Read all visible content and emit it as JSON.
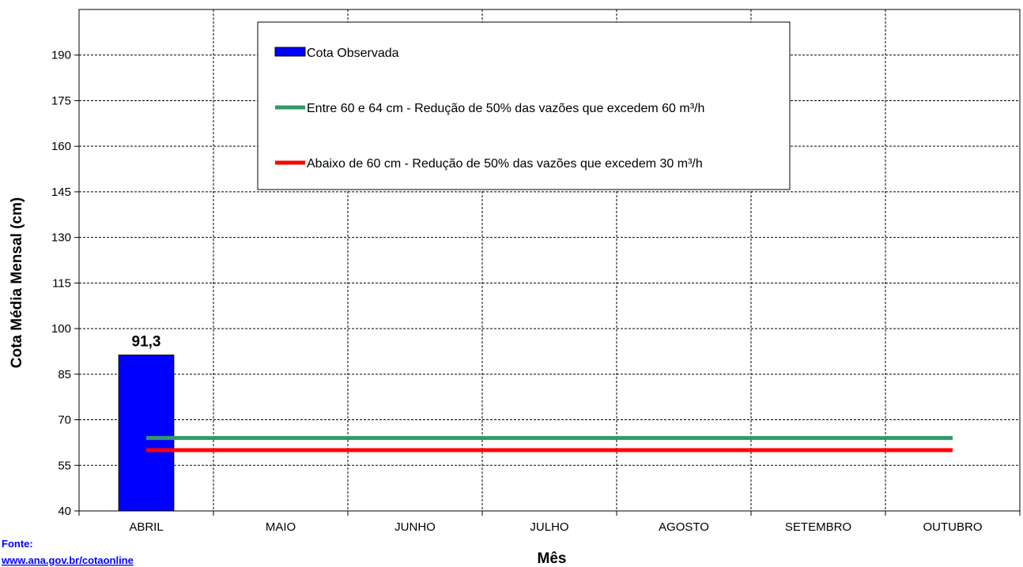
{
  "chart_data": {
    "type": "bar",
    "title": "",
    "xlabel": "Mês",
    "ylabel": "Cota Média Mensal  (cm)",
    "categories": [
      "ABRIL",
      "MAIO",
      "JUNHO",
      "JULHO",
      "AGOSTO",
      "SETEMBRO",
      "OUTUBRO"
    ],
    "ylim": [
      40,
      205
    ],
    "yticks": [
      40,
      55,
      70,
      85,
      100,
      115,
      130,
      145,
      160,
      175,
      190
    ],
    "grid": true,
    "legend_position": "top-center",
    "series": [
      {
        "name": "Cota Observada",
        "kind": "bar",
        "color": "#0000ff",
        "values": [
          91.3,
          null,
          null,
          null,
          null,
          null,
          null
        ],
        "data_labels": [
          "91,3",
          null,
          null,
          null,
          null,
          null,
          null
        ]
      },
      {
        "name": "Entre 60 e 64 cm - Redução de 50% das vazões que excedem 60 m³/h",
        "kind": "line",
        "color": "#339966",
        "values": [
          64,
          64,
          64,
          64,
          64,
          64,
          64
        ]
      },
      {
        "name": "Abaixo de 60 cm - Redução de 50% das vazões que excedem 30 m³/h",
        "kind": "line",
        "color": "#ff0000",
        "values": [
          60,
          60,
          60,
          60,
          60,
          60,
          60
        ]
      }
    ]
  },
  "source": {
    "label": "Fonte:",
    "url": "www.ana.gov.br/cotaonline"
  }
}
